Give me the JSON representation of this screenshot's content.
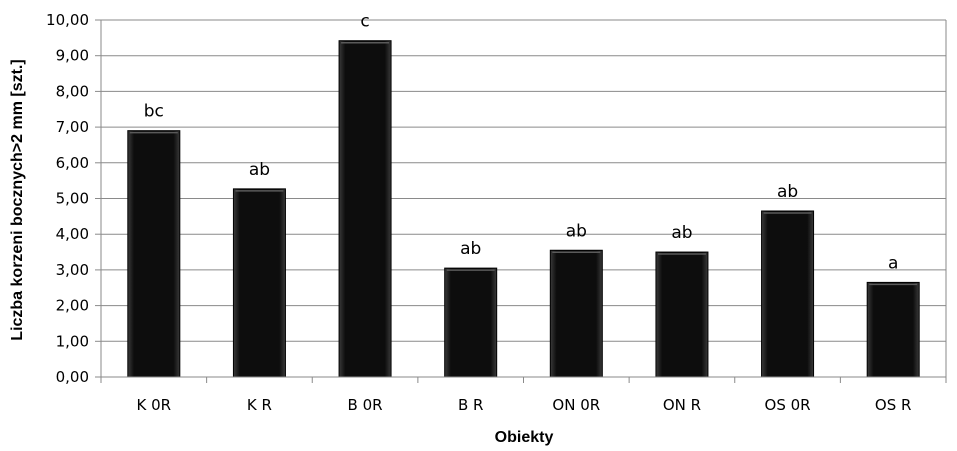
{
  "chart_data": {
    "type": "bar",
    "categories": [
      "K 0R",
      "K R",
      "B 0R",
      "B R",
      "ON 0R",
      "ON R",
      "OS 0R",
      "OS R"
    ],
    "values": [
      6.9,
      5.27,
      9.42,
      3.05,
      3.55,
      3.5,
      4.65,
      2.65
    ],
    "data_labels": [
      "bc",
      "ab",
      "c",
      "ab",
      "ab",
      "ab",
      "ab",
      "a"
    ],
    "xlabel": "Obiekty",
    "ylabel": "Liczba korzeni bocznych>2  mm [szt.]",
    "ylim": [
      0,
      10
    ],
    "yticks": [
      "0,00",
      "1,00",
      "2,00",
      "3,00",
      "4,00",
      "5,00",
      "6,00",
      "7,00",
      "8,00",
      "9,00",
      "10,00"
    ],
    "grid": true,
    "legend": "none",
    "bar_color": "#0d0d0d",
    "grid_color": "#8a8a8a"
  }
}
